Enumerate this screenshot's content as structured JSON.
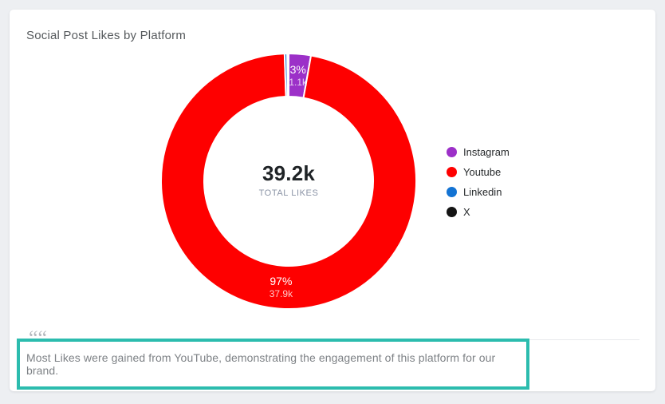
{
  "card": {
    "title": "Social Post Likes by Platform"
  },
  "chart_data": {
    "type": "pie",
    "variant": "doughnut",
    "title": "Social Post Likes by Platform",
    "center_value": "39.2k",
    "center_caption": "TOTAL LIKES",
    "cutout_ratio": 0.66,
    "border_color": "#ffffff",
    "legend_position": "right",
    "slices": [
      {
        "name": "Instagram",
        "color": "#9c30c8",
        "value": 1100,
        "pct_label": "3%",
        "value_label": "1.1k"
      },
      {
        "name": "Youtube",
        "color": "#fe0000",
        "value": 37900,
        "pct_label": "97%",
        "value_label": "37.9k"
      },
      {
        "name": "Linkedin",
        "color": "#1373d3",
        "value": 130,
        "pct_label": "",
        "value_label": ""
      },
      {
        "name": "X",
        "color": "#141414",
        "value": 70,
        "pct_label": "",
        "value_label": ""
      }
    ]
  },
  "insight": {
    "text": "Most Likes were gained from YouTube, demonstrating the engagement of this platform for our brand.",
    "highlight_color": "#2cbcae"
  },
  "icons": {
    "quote": "““"
  },
  "colors": {
    "page_background": "#edeff2",
    "card_background": "#ffffff",
    "title_text": "#55595c",
    "center_value_text": "#1f2326",
    "center_caption_text": "#8b94a6",
    "insight_text": "#7e8286",
    "divider": "#e8eaed"
  }
}
